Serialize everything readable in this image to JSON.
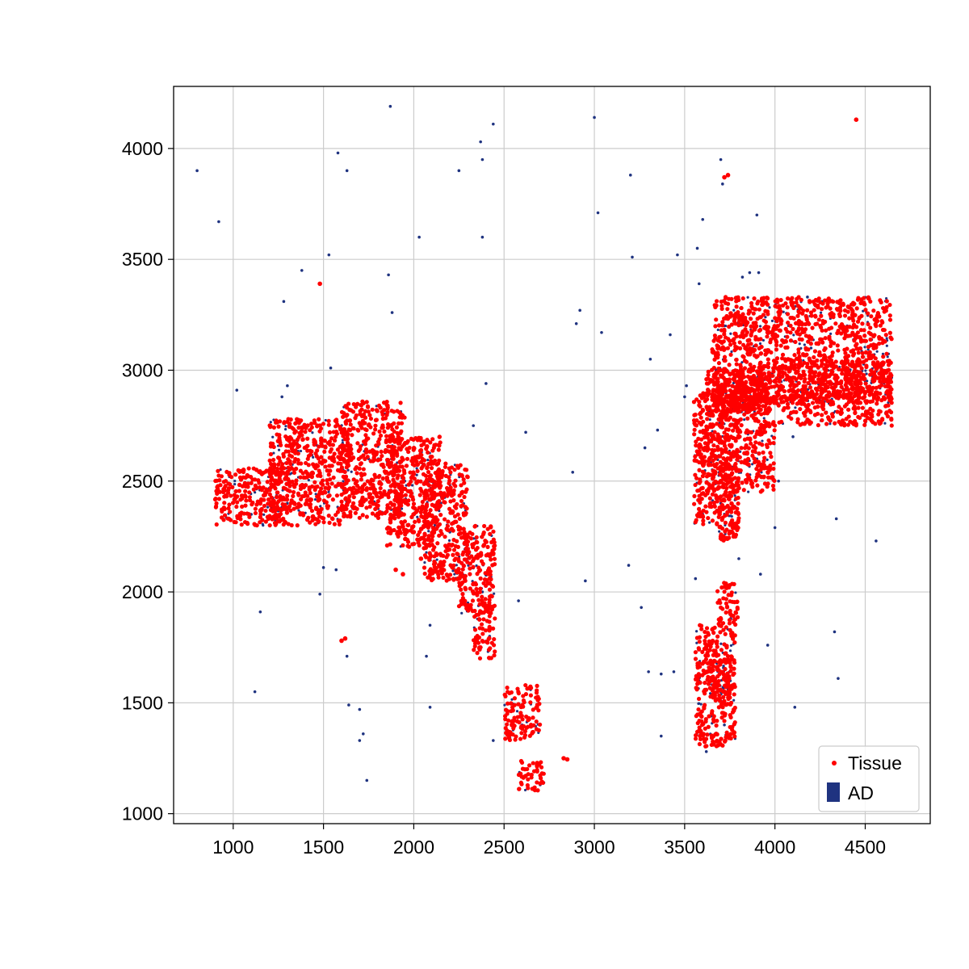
{
  "chart_data": {
    "type": "scatter",
    "title": "",
    "xlabel": "",
    "ylabel": "",
    "xlim": [
      670,
      4860
    ],
    "ylim": [
      955,
      4280
    ],
    "xticks": [
      1000,
      1500,
      2000,
      2500,
      3000,
      3500,
      4000,
      4500
    ],
    "yticks": [
      1000,
      1500,
      2000,
      2500,
      3000,
      3500,
      4000
    ],
    "grid": true,
    "legend_placement": "lower-right",
    "series": [
      {
        "name": "Tissue",
        "marker": "dot",
        "color": "#ff0000",
        "region_seeds": [
          [
            900,
            2300,
            1300,
            2560
          ],
          [
            1200,
            2300,
            1650,
            2780
          ],
          [
            1600,
            2330,
            1950,
            2860
          ],
          [
            1850,
            2200,
            2150,
            2700
          ],
          [
            2050,
            2050,
            2300,
            2580
          ],
          [
            2250,
            1900,
            2450,
            2300
          ],
          [
            2330,
            1700,
            2450,
            1950
          ],
          [
            2500,
            1330,
            2700,
            1580
          ],
          [
            2580,
            1100,
            2720,
            1250
          ],
          [
            3550,
            2300,
            3800,
            2900
          ],
          [
            3620,
            2450,
            4000,
            3000
          ],
          [
            3650,
            2850,
            4650,
            3330
          ],
          [
            3990,
            2750,
            4650,
            3050
          ],
          [
            3650,
            2800,
            3980,
            3000
          ],
          [
            3680,
            2230,
            3800,
            2450
          ],
          [
            3680,
            1850,
            3800,
            2050
          ],
          [
            3560,
            1300,
            3780,
            1850
          ],
          [
            3630,
            1500,
            3780,
            1700
          ]
        ],
        "points": [
          [
            1480,
            3390
          ],
          [
            4450,
            4130
          ],
          [
            3720,
            3870
          ],
          [
            3740,
            3880
          ],
          [
            1600,
            1780
          ],
          [
            1620,
            1790
          ],
          [
            2830,
            1250
          ],
          [
            2850,
            1245
          ],
          [
            2040,
            2150
          ],
          [
            2000,
            2270
          ],
          [
            1900,
            2100
          ],
          [
            1940,
            2080
          ]
        ]
      },
      {
        "name": "AD",
        "marker": "dot",
        "color": "#1f3380",
        "points": [
          [
            800,
            3900
          ],
          [
            920,
            3670
          ],
          [
            1020,
            2910
          ],
          [
            1120,
            1550
          ],
          [
            1150,
            1910
          ],
          [
            1270,
            2880
          ],
          [
            1280,
            3310
          ],
          [
            1300,
            2930
          ],
          [
            1380,
            3450
          ],
          [
            1480,
            1990
          ],
          [
            1500,
            2110
          ],
          [
            1530,
            3520
          ],
          [
            1540,
            3010
          ],
          [
            1570,
            2100
          ],
          [
            1580,
            3980
          ],
          [
            1630,
            3900
          ],
          [
            1630,
            1710
          ],
          [
            1640,
            1490
          ],
          [
            1700,
            1330
          ],
          [
            1700,
            1470
          ],
          [
            1720,
            1360
          ],
          [
            1740,
            1150
          ],
          [
            1870,
            4190
          ],
          [
            1860,
            3430
          ],
          [
            1880,
            3260
          ],
          [
            2030,
            3600
          ],
          [
            2070,
            1710
          ],
          [
            2090,
            1850
          ],
          [
            2090,
            1480
          ],
          [
            2200,
            2270
          ],
          [
            2250,
            3900
          ],
          [
            2330,
            2750
          ],
          [
            2370,
            4030
          ],
          [
            2380,
            3600
          ],
          [
            2380,
            3950
          ],
          [
            2400,
            2940
          ],
          [
            2440,
            4110
          ],
          [
            2440,
            1330
          ],
          [
            2580,
            1960
          ],
          [
            2620,
            2720
          ],
          [
            2700,
            1130
          ],
          [
            2720,
            1140
          ],
          [
            2880,
            2540
          ],
          [
            2900,
            3210
          ],
          [
            2920,
            3270
          ],
          [
            2950,
            2050
          ],
          [
            3000,
            4140
          ],
          [
            3020,
            3710
          ],
          [
            3040,
            3170
          ],
          [
            3190,
            2120
          ],
          [
            3200,
            3880
          ],
          [
            3210,
            3510
          ],
          [
            3260,
            1930
          ],
          [
            3280,
            2650
          ],
          [
            3300,
            1640
          ],
          [
            3310,
            3050
          ],
          [
            3350,
            2730
          ],
          [
            3370,
            1630
          ],
          [
            3370,
            1350
          ],
          [
            3420,
            3160
          ],
          [
            3440,
            1640
          ],
          [
            3460,
            3520
          ],
          [
            3500,
            2880
          ],
          [
            3510,
            2930
          ],
          [
            3560,
            2060
          ],
          [
            3570,
            3550
          ],
          [
            3580,
            3390
          ],
          [
            3600,
            3680
          ],
          [
            3700,
            3950
          ],
          [
            3710,
            3840
          ],
          [
            3720,
            3200
          ],
          [
            3820,
            3420
          ],
          [
            3860,
            3440
          ],
          [
            3900,
            3700
          ],
          [
            3910,
            3440
          ],
          [
            3920,
            2080
          ],
          [
            3960,
            1760
          ],
          [
            4000,
            2290
          ],
          [
            4110,
            1480
          ],
          [
            4180,
            3330
          ],
          [
            4330,
            1820
          ],
          [
            4340,
            2330
          ],
          [
            4350,
            1610
          ],
          [
            4560,
            2230
          ],
          [
            3580,
            1600
          ],
          [
            3620,
            1280
          ],
          [
            3700,
            1550
          ],
          [
            3720,
            1400
          ],
          [
            3750,
            1900
          ],
          [
            3800,
            2150
          ],
          [
            3900,
            2600
          ],
          [
            4020,
            2500
          ],
          [
            4100,
            2700
          ],
          [
            4300,
            2850
          ],
          [
            4400,
            3200
          ],
          [
            1750,
            2600
          ],
          [
            1850,
            2800
          ],
          [
            1950,
            2500
          ],
          [
            1300,
            2400
          ],
          [
            1100,
            2350
          ],
          [
            2150,
            2400
          ],
          [
            2300,
            2150
          ],
          [
            2380,
            2000
          ],
          [
            2420,
            1800
          ],
          [
            2600,
            1400
          ],
          [
            3650,
            2700
          ],
          [
            3700,
            2400
          ],
          [
            3850,
            2900
          ],
          [
            4200,
            3100
          ],
          [
            4500,
            2950
          ]
        ]
      }
    ]
  }
}
